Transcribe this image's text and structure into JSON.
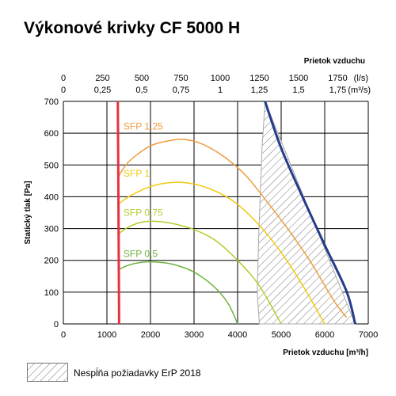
{
  "chart_data": {
    "type": "line",
    "title": "Výkonové krivky CF 5000 H",
    "xlabel": "Prietok vzduchu [m³/h]",
    "ylabel": "Statický tlak [Pa]",
    "xlim": [
      0,
      7000
    ],
    "ylim": [
      0,
      700
    ],
    "x_ticks": [
      0,
      1000,
      2000,
      3000,
      4000,
      5000,
      6000,
      7000
    ],
    "y_ticks": [
      0,
      100,
      200,
      300,
      400,
      500,
      600,
      700
    ],
    "grid": true,
    "top_axis": {
      "label": "Prietok vzduchu",
      "ls_ticks": [
        "0",
        "250",
        "500",
        "750",
        "1000",
        "1250",
        "1500",
        "1750"
      ],
      "m3s_ticks": [
        "0",
        "0,25",
        "0,5",
        "0,75",
        "1",
        "1,25",
        "1,5",
        "1,75"
      ],
      "ls_unit": "(l/s)",
      "m3s_unit": "(m³/s)"
    },
    "series": [
      {
        "name": "SFP 0,5",
        "color": "#6db33f",
        "label_at": [
          1380,
          210
        ],
        "x": [
          1250,
          1500,
          1800,
          2100,
          2500,
          3000,
          3500,
          3800,
          4000
        ],
        "y": [
          170,
          185,
          194,
          195,
          188,
          163,
          112,
          60,
          0
        ]
      },
      {
        "name": "SFP 0,75",
        "color": "#b5cc2f",
        "label_at": [
          1380,
          340
        ],
        "x": [
          1250,
          1500,
          1800,
          2100,
          2500,
          3000,
          3500,
          4000,
          4500,
          5000
        ],
        "y": [
          282,
          305,
          320,
          323,
          316,
          297,
          262,
          200,
          120,
          0
        ]
      },
      {
        "name": "SFP 1",
        "color": "#f2c80e",
        "label_at": [
          1380,
          463
        ],
        "x": [
          1250,
          1500,
          2000,
          2500,
          3000,
          3500,
          4000,
          4500,
          5000,
          5500,
          6000
        ],
        "y": [
          375,
          400,
          432,
          445,
          440,
          417,
          376,
          310,
          225,
          120,
          0
        ]
      },
      {
        "name": "SFP 1,25",
        "color": "#ee9c3e",
        "label_at": [
          1380,
          612
        ],
        "x": [
          1250,
          1500,
          2000,
          2500,
          2800,
          3200,
          3700,
          4200,
          4700,
          5200,
          5700,
          6200,
          6500
        ],
        "y": [
          460,
          510,
          560,
          578,
          580,
          565,
          525,
          465,
          380,
          290,
          190,
          75,
          20
        ]
      },
      {
        "name": "",
        "color": "#e8313f",
        "width": 3,
        "x": [
          1250,
          1260,
          1270,
          1280
        ],
        "y": [
          700,
          500,
          250,
          0
        ]
      },
      {
        "name": "",
        "color": "#253c8a",
        "width": 3,
        "x": [
          4630,
          5000,
          5500,
          6000,
          6500,
          6700
        ],
        "y": [
          700,
          553,
          397,
          248,
          103,
          0
        ]
      }
    ],
    "hatched_region": {
      "x": [
        4630,
        4560,
        4490,
        4450,
        4500,
        6700
      ],
      "y": [
        700,
        550,
        300,
        100,
        0,
        0
      ]
    },
    "legend": {
      "position": "bottom-left",
      "hatch_label": "Nespĺňa požiadavky ErP 2018"
    }
  }
}
